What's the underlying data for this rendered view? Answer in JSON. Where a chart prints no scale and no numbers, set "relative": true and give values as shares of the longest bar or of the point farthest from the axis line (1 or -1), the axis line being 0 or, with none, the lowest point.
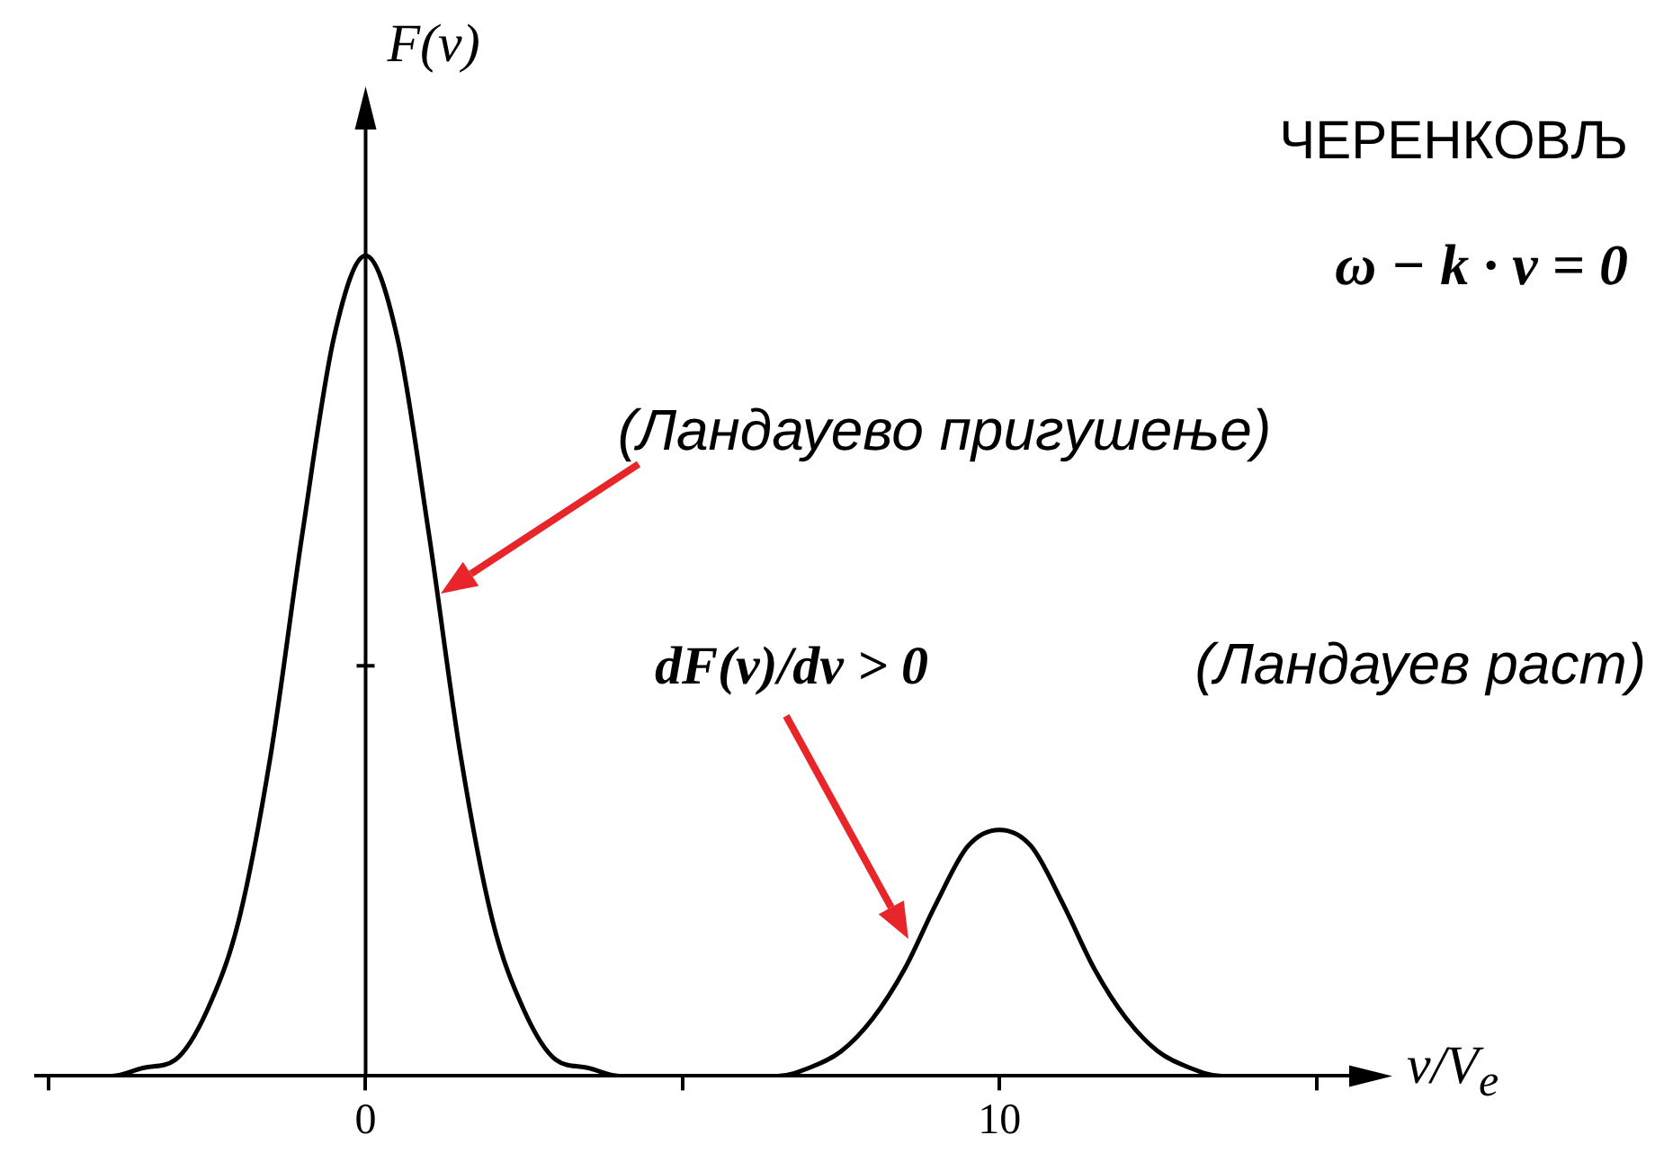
{
  "chart_data": {
    "type": "line",
    "xlabel": "v/V$_{e}$",
    "ylabel": "F(v)",
    "relative": true,
    "color": "#000000",
    "xlim": [
      -5.2,
      15.8
    ],
    "xticks": [
      {
        "value": -5,
        "label": null
      },
      0,
      {
        "value": 5,
        "label": null
      },
      10,
      {
        "value": 15,
        "label": null
      }
    ],
    "x": [
      -5.2,
      -4.5,
      -4,
      -3.5,
      -3,
      -2.5,
      -2,
      -1.5,
      -1,
      -0.5,
      0,
      0.5,
      1,
      1.5,
      2,
      2.5,
      3,
      3.5,
      4,
      5,
      6,
      6.5,
      7,
      7.5,
      8,
      8.5,
      9,
      9.5,
      10,
      10.5,
      11,
      11.5,
      12,
      12.5,
      13,
      13.5,
      14,
      15,
      15.8
    ],
    "values": [
      0,
      0,
      0,
      0.01,
      0.02,
      0.08,
      0.19,
      0.39,
      0.66,
      0.9,
      1,
      0.9,
      0.66,
      0.39,
      0.19,
      0.08,
      0.02,
      0.01,
      0,
      0,
      0,
      0,
      0.01,
      0.03,
      0.07,
      0.13,
      0.21,
      0.28,
      0.3,
      0.28,
      0.21,
      0.13,
      0.07,
      0.03,
      0.01,
      0,
      0,
      0,
      0
    ],
    "annotations": [
      "ЧЕРЕНКОВЉ",
      "ω − k · v = 0",
      "(Ландауево пригушење)",
      "dF(v)/dv > 0",
      "(Ландауев раст)"
    ]
  }
}
